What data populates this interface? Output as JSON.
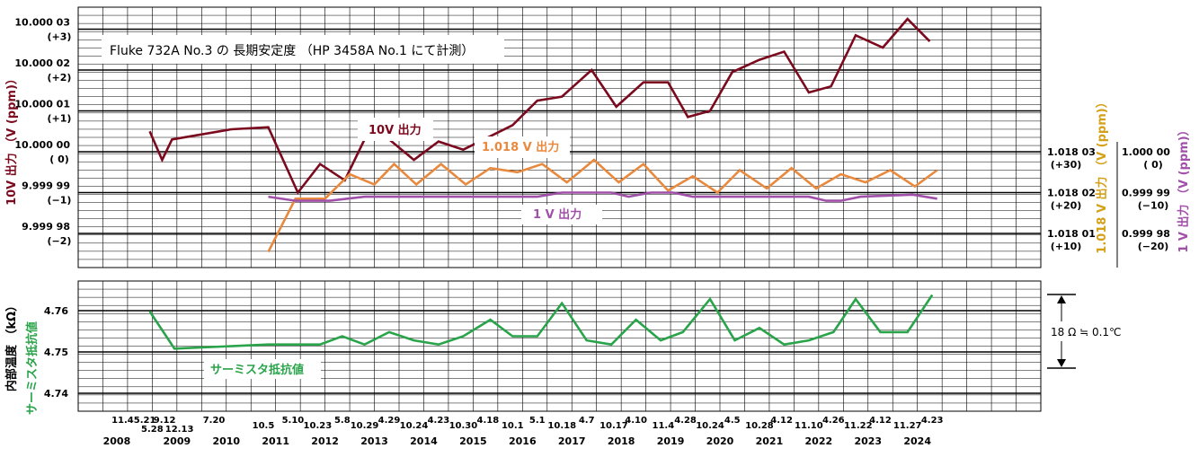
{
  "title": "Fluke 732A  No.3 の 長期安定度 （HP 3458A No.1 にて計測）",
  "colors": {
    "v10": "#7b0a1e",
    "v1018": "#e8893e",
    "v1": "#a050a8",
    "therm": "#2aa44a",
    "grid": "#000000",
    "v1018_label": "#d4a017"
  },
  "chart_data": [
    {
      "type": "line",
      "name": "upper",
      "title": "Fluke 732A  No.3 の 長期安定度 （HP 3458A No.1 にて計測）",
      "ylabel_left": "10V 出力 （V (ppm)）",
      "ylabel_right1": "1.018 V 出力 （V (ppm)）",
      "ylabel_right2": "1 V 出力 （V (ppm)）",
      "y_ticks_left": [
        {
          "ppm": 3,
          "value": "10.000 03",
          "sub": "(+3)"
        },
        {
          "ppm": 2,
          "value": "10.000 02",
          "sub": "(+2)"
        },
        {
          "ppm": 1,
          "value": "10.000 01",
          "sub": "(+1)"
        },
        {
          "ppm": 0,
          "value": "10.000 00",
          "sub": "( 0)"
        },
        {
          "ppm": -1,
          "value": "9.999 99",
          "sub": "(−1)"
        },
        {
          "ppm": -2,
          "value": "9.999 98",
          "sub": "(−2)"
        }
      ],
      "y_ticks_right1": [
        {
          "ppm": 0,
          "value": "1.018 03",
          "sub": "(+30)"
        },
        {
          "ppm": -1,
          "value": "1.018 02",
          "sub": "(+20)"
        },
        {
          "ppm": -2,
          "value": "1.018 01",
          "sub": "(+10)"
        }
      ],
      "y_ticks_right2": [
        {
          "ppm": 0,
          "value": "1.000 00",
          "sub": "( 0)"
        },
        {
          "ppm": -1,
          "value": "0.999 99",
          "sub": "(−10)"
        },
        {
          "ppm": -2,
          "value": "0.999 98",
          "sub": "(−20)"
        }
      ],
      "ylim": [
        -2.5,
        3.4
      ],
      "series": [
        {
          "name": "10V 出力",
          "points": [
            [
              2008.95,
              0.5
            ],
            [
              2009.2,
              -0.2
            ],
            [
              2009.4,
              0.3
            ],
            [
              2010.6,
              0.55
            ],
            [
              2011.35,
              0.6
            ],
            [
              2011.95,
              -1.0
            ],
            [
              2012.4,
              -0.3
            ],
            [
              2012.9,
              -0.7
            ],
            [
              2013.3,
              0.3
            ],
            [
              2013.8,
              0.3
            ],
            [
              2014.3,
              -0.2
            ],
            [
              2014.8,
              0.25
            ],
            [
              2015.3,
              0.05
            ],
            [
              2016.3,
              0.65
            ],
            [
              2016.8,
              1.25
            ],
            [
              2017.3,
              1.35
            ],
            [
              2017.9,
              2.0
            ],
            [
              2018.4,
              1.1
            ],
            [
              2018.95,
              1.7
            ],
            [
              2019.45,
              1.7
            ],
            [
              2019.85,
              0.85
            ],
            [
              2020.3,
              1.0
            ],
            [
              2020.75,
              1.95
            ],
            [
              2021.3,
              2.25
            ],
            [
              2021.8,
              2.45
            ],
            [
              2022.3,
              1.45
            ],
            [
              2022.75,
              1.6
            ],
            [
              2023.25,
              2.85
            ],
            [
              2023.8,
              2.55
            ],
            [
              2024.3,
              3.25
            ],
            [
              2024.75,
              2.7
            ]
          ]
        },
        {
          "name": "1.018 V 出力",
          "points": [
            [
              2011.35,
              -2.45
            ],
            [
              2011.9,
              -1.15
            ],
            [
              2012.5,
              -1.15
            ],
            [
              2013.0,
              -0.55
            ],
            [
              2013.5,
              -0.8
            ],
            [
              2013.9,
              -0.3
            ],
            [
              2014.35,
              -0.8
            ],
            [
              2014.85,
              -0.3
            ],
            [
              2015.35,
              -0.8
            ],
            [
              2015.85,
              -0.4
            ],
            [
              2016.4,
              -0.5
            ],
            [
              2016.9,
              -0.3
            ],
            [
              2017.4,
              -0.75
            ],
            [
              2017.95,
              -0.2
            ],
            [
              2018.45,
              -0.75
            ],
            [
              2018.95,
              -0.3
            ],
            [
              2019.45,
              -0.95
            ],
            [
              2019.95,
              -0.6
            ],
            [
              2020.45,
              -1.0
            ],
            [
              2020.9,
              -0.45
            ],
            [
              2021.45,
              -0.9
            ],
            [
              2021.95,
              -0.4
            ],
            [
              2022.45,
              -0.9
            ],
            [
              2022.95,
              -0.55
            ],
            [
              2023.45,
              -0.75
            ],
            [
              2023.95,
              -0.45
            ],
            [
              2024.45,
              -0.85
            ],
            [
              2024.9,
              -0.45
            ]
          ]
        },
        {
          "name": "1 V 出力",
          "points": [
            [
              2011.35,
              -1.1
            ],
            [
              2011.9,
              -1.2
            ],
            [
              2012.6,
              -1.2
            ],
            [
              2013.3,
              -1.1
            ],
            [
              2016.8,
              -1.1
            ],
            [
              2017.3,
              -1.0
            ],
            [
              2018.3,
              -1.0
            ],
            [
              2018.65,
              -1.1
            ],
            [
              2019.1,
              -1.0
            ],
            [
              2019.55,
              -1.0
            ],
            [
              2019.95,
              -1.1
            ],
            [
              2022.3,
              -1.1
            ],
            [
              2022.65,
              -1.2
            ],
            [
              2022.95,
              -1.2
            ],
            [
              2023.35,
              -1.1
            ],
            [
              2024.4,
              -1.05
            ],
            [
              2024.9,
              -1.15
            ]
          ]
        }
      ]
    },
    {
      "type": "line",
      "name": "lower",
      "ylabel": "内部温度 （kΩ）",
      "y_ticks": [
        4.76,
        4.75,
        4.74
      ],
      "ylim": [
        4.735,
        4.768
      ],
      "annotation": "18 Ω ≒ 0.1℃",
      "series": [
        {
          "name": "サーミスタ抵抗値",
          "points": [
            [
              2008.95,
              4.7598
            ],
            [
              2009.45,
              4.7508
            ],
            [
              2011.35,
              4.7518
            ],
            [
              2012.4,
              4.7518
            ],
            [
              2012.85,
              4.7538
            ],
            [
              2013.3,
              4.7518
            ],
            [
              2013.8,
              4.7548
            ],
            [
              2014.3,
              4.7528
            ],
            [
              2014.8,
              4.7518
            ],
            [
              2015.3,
              4.7538
            ],
            [
              2015.85,
              4.7578
            ],
            [
              2016.3,
              4.7538
            ],
            [
              2016.8,
              4.7538
            ],
            [
              2017.3,
              4.7618
            ],
            [
              2017.8,
              4.7528
            ],
            [
              2018.3,
              4.7518
            ],
            [
              2018.8,
              4.7578
            ],
            [
              2019.3,
              4.7528
            ],
            [
              2019.75,
              4.7548
            ],
            [
              2020.3,
              4.7628
            ],
            [
              2020.8,
              4.7528
            ],
            [
              2021.3,
              4.7558
            ],
            [
              2021.8,
              4.7518
            ],
            [
              2022.3,
              4.7528
            ],
            [
              2022.8,
              4.7548
            ],
            [
              2023.25,
              4.7628
            ],
            [
              2023.75,
              4.7548
            ],
            [
              2024.3,
              4.7548
            ],
            [
              2024.8,
              4.7638
            ]
          ]
        }
      ]
    }
  ],
  "date_labels_row1": [
    {
      "t": "11.4",
      "x": 2008.4
    },
    {
      "t": "5.21",
      "x": 2008.85
    },
    {
      "t": "9.12",
      "x": 2009.25
    },
    {
      "t": "7.20",
      "x": 2010.25
    },
    {
      "t": "5.28",
      "x": 2009.0,
      "row": 2
    },
    {
      "t": "12.13",
      "x": 2009.55,
      "row": 2
    }
  ],
  "date_labels_row2": [
    {
      "t": "10.5",
      "x": 2011.25
    },
    {
      "t": "5.10",
      "x": 2011.85
    },
    {
      "t": "10.23",
      "x": 2012.35
    },
    {
      "t": "5.8",
      "x": 2012.85
    },
    {
      "t": "10.29",
      "x": 2013.3
    },
    {
      "t": "4.29",
      "x": 2013.8
    },
    {
      "t": "10.24",
      "x": 2014.3
    },
    {
      "t": "4.23",
      "x": 2014.8
    },
    {
      "t": "10.30",
      "x": 2015.3
    },
    {
      "t": "4.18",
      "x": 2015.8
    },
    {
      "t": "10.1",
      "x": 2016.3
    },
    {
      "t": "5.1",
      "x": 2016.8
    },
    {
      "t": "10.18",
      "x": 2017.3
    },
    {
      "t": "4.7",
      "x": 2017.8
    },
    {
      "t": "10.17",
      "x": 2018.35
    },
    {
      "t": "4.10",
      "x": 2018.8
    },
    {
      "t": "11.4",
      "x": 2019.35
    },
    {
      "t": "4.28",
      "x": 2019.8
    },
    {
      "t": "10.24",
      "x": 2020.3
    },
    {
      "t": "4.5",
      "x": 2020.75
    },
    {
      "t": "10.28",
      "x": 2021.3
    },
    {
      "t": "4.12",
      "x": 2021.75
    },
    {
      "t": "11.10",
      "x": 2022.3
    },
    {
      "t": "4.26",
      "x": 2022.8
    },
    {
      "t": "11.22",
      "x": 2023.3
    },
    {
      "t": "4.12",
      "x": 2023.75
    },
    {
      "t": "11.27",
      "x": 2024.3
    },
    {
      "t": "4.23",
      "x": 2024.8
    }
  ],
  "years": [
    "2008",
    "2009",
    "2010",
    "2011",
    "2012",
    "2013",
    "2014",
    "2015",
    "2016",
    "2017",
    "2018",
    "2019",
    "2020",
    "2021",
    "2022",
    "2023",
    "2024"
  ],
  "labels": {
    "v10": "10V 出力",
    "v1018": "1.018 V 出力",
    "v1": "1 V 出力",
    "therm": "サーミスタ抵抗値"
  }
}
